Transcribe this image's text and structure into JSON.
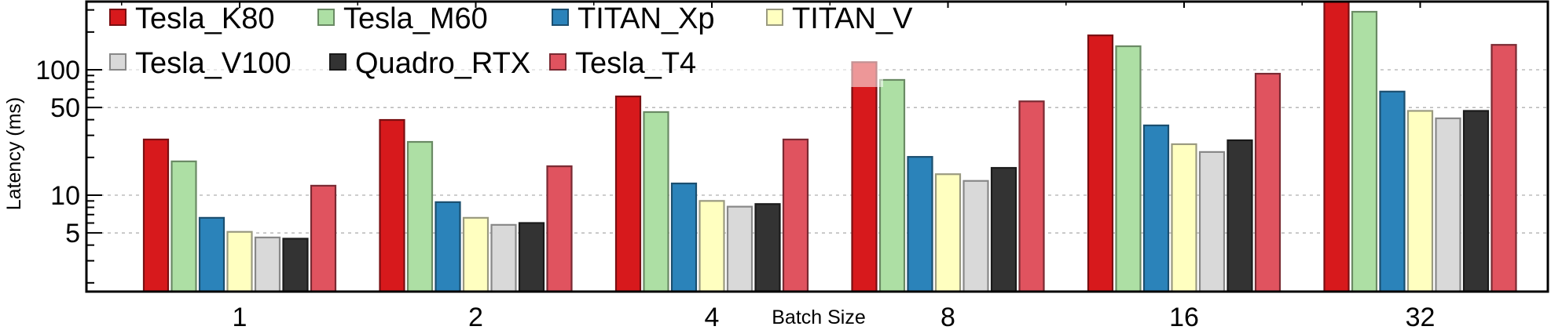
{
  "chart_data": {
    "type": "bar",
    "title": "",
    "xlabel": "Batch Size",
    "ylabel": "Latency (ms)",
    "yscale": "log",
    "ylim": [
      1.7,
      350
    ],
    "yticks": [
      5,
      10,
      50,
      100
    ],
    "ytick_labels": [
      "5",
      "10",
      "50",
      "100"
    ],
    "grid": "dashed horizontal at major ticks",
    "legend_position": "top-left",
    "legend_columns": 4,
    "categories": [
      "1",
      "2",
      "4",
      "8",
      "16",
      "32"
    ],
    "series": [
      {
        "name": "Tesla_K80",
        "color": "#d7191c",
        "edge": "#7a0f12",
        "values": [
          27.8,
          39.8,
          61.3,
          115,
          188,
          400
        ]
      },
      {
        "name": "Tesla_M60",
        "color": "#addfa4",
        "edge": "#6a8a64",
        "values": [
          18.6,
          26.6,
          46,
          83,
          154,
          290
        ]
      },
      {
        "name": "TITAN_Xp",
        "color": "#2b83ba",
        "edge": "#1b4f70",
        "values": [
          6.6,
          8.8,
          12.4,
          20.2,
          36,
          67
        ]
      },
      {
        "name": "TITAN_V",
        "color": "#ffffc0",
        "edge": "#9a9a80",
        "values": [
          5.1,
          6.6,
          9.0,
          14.7,
          25.5,
          47
        ]
      },
      {
        "name": "Tesla_V100",
        "color": "#d9d9d9",
        "edge": "#888888",
        "values": [
          4.6,
          5.8,
          8.1,
          13.0,
          22.1,
          41
        ]
      },
      {
        "name": "Quadro_RTX",
        "color": "#333333",
        "edge": "#1a1a1a",
        "values": [
          4.5,
          6.0,
          8.5,
          16.5,
          27.4,
          47
        ]
      },
      {
        "name": "Tesla_T4",
        "color": "#e0535f",
        "edge": "#7a2a33",
        "values": [
          11.9,
          17.0,
          27.8,
          56,
          93,
          158
        ]
      }
    ]
  }
}
